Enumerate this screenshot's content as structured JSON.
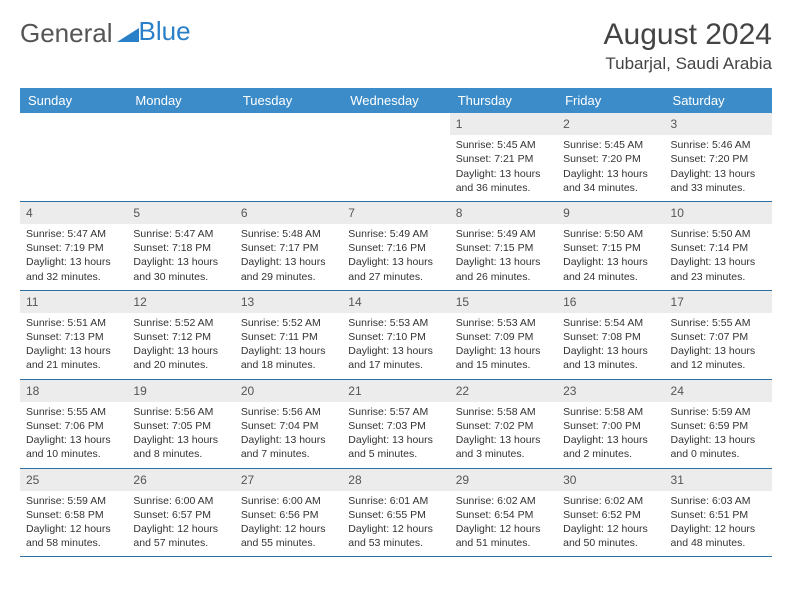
{
  "logo": {
    "part1": "General",
    "part2": "Blue"
  },
  "title": "August 2024",
  "location": "Tubarjal, Saudi Arabia",
  "colors": {
    "header_bg": "#3b8cc9",
    "header_text": "#ffffff",
    "daynum_bg": "#ececec",
    "week_border": "#2a6fa3",
    "logo_blue": "#2a7fc9",
    "text": "#333333"
  },
  "day_names": [
    "Sunday",
    "Monday",
    "Tuesday",
    "Wednesday",
    "Thursday",
    "Friday",
    "Saturday"
  ],
  "weeks": [
    [
      {
        "n": "",
        "sr": "",
        "ss": "",
        "dl": ""
      },
      {
        "n": "",
        "sr": "",
        "ss": "",
        "dl": ""
      },
      {
        "n": "",
        "sr": "",
        "ss": "",
        "dl": ""
      },
      {
        "n": "",
        "sr": "",
        "ss": "",
        "dl": ""
      },
      {
        "n": "1",
        "sr": "5:45 AM",
        "ss": "7:21 PM",
        "dl": "13 hours and 36 minutes."
      },
      {
        "n": "2",
        "sr": "5:45 AM",
        "ss": "7:20 PM",
        "dl": "13 hours and 34 minutes."
      },
      {
        "n": "3",
        "sr": "5:46 AM",
        "ss": "7:20 PM",
        "dl": "13 hours and 33 minutes."
      }
    ],
    [
      {
        "n": "4",
        "sr": "5:47 AM",
        "ss": "7:19 PM",
        "dl": "13 hours and 32 minutes."
      },
      {
        "n": "5",
        "sr": "5:47 AM",
        "ss": "7:18 PM",
        "dl": "13 hours and 30 minutes."
      },
      {
        "n": "6",
        "sr": "5:48 AM",
        "ss": "7:17 PM",
        "dl": "13 hours and 29 minutes."
      },
      {
        "n": "7",
        "sr": "5:49 AM",
        "ss": "7:16 PM",
        "dl": "13 hours and 27 minutes."
      },
      {
        "n": "8",
        "sr": "5:49 AM",
        "ss": "7:15 PM",
        "dl": "13 hours and 26 minutes."
      },
      {
        "n": "9",
        "sr": "5:50 AM",
        "ss": "7:15 PM",
        "dl": "13 hours and 24 minutes."
      },
      {
        "n": "10",
        "sr": "5:50 AM",
        "ss": "7:14 PM",
        "dl": "13 hours and 23 minutes."
      }
    ],
    [
      {
        "n": "11",
        "sr": "5:51 AM",
        "ss": "7:13 PM",
        "dl": "13 hours and 21 minutes."
      },
      {
        "n": "12",
        "sr": "5:52 AM",
        "ss": "7:12 PM",
        "dl": "13 hours and 20 minutes."
      },
      {
        "n": "13",
        "sr": "5:52 AM",
        "ss": "7:11 PM",
        "dl": "13 hours and 18 minutes."
      },
      {
        "n": "14",
        "sr": "5:53 AM",
        "ss": "7:10 PM",
        "dl": "13 hours and 17 minutes."
      },
      {
        "n": "15",
        "sr": "5:53 AM",
        "ss": "7:09 PM",
        "dl": "13 hours and 15 minutes."
      },
      {
        "n": "16",
        "sr": "5:54 AM",
        "ss": "7:08 PM",
        "dl": "13 hours and 13 minutes."
      },
      {
        "n": "17",
        "sr": "5:55 AM",
        "ss": "7:07 PM",
        "dl": "13 hours and 12 minutes."
      }
    ],
    [
      {
        "n": "18",
        "sr": "5:55 AM",
        "ss": "7:06 PM",
        "dl": "13 hours and 10 minutes."
      },
      {
        "n": "19",
        "sr": "5:56 AM",
        "ss": "7:05 PM",
        "dl": "13 hours and 8 minutes."
      },
      {
        "n": "20",
        "sr": "5:56 AM",
        "ss": "7:04 PM",
        "dl": "13 hours and 7 minutes."
      },
      {
        "n": "21",
        "sr": "5:57 AM",
        "ss": "7:03 PM",
        "dl": "13 hours and 5 minutes."
      },
      {
        "n": "22",
        "sr": "5:58 AM",
        "ss": "7:02 PM",
        "dl": "13 hours and 3 minutes."
      },
      {
        "n": "23",
        "sr": "5:58 AM",
        "ss": "7:00 PM",
        "dl": "13 hours and 2 minutes."
      },
      {
        "n": "24",
        "sr": "5:59 AM",
        "ss": "6:59 PM",
        "dl": "13 hours and 0 minutes."
      }
    ],
    [
      {
        "n": "25",
        "sr": "5:59 AM",
        "ss": "6:58 PM",
        "dl": "12 hours and 58 minutes."
      },
      {
        "n": "26",
        "sr": "6:00 AM",
        "ss": "6:57 PM",
        "dl": "12 hours and 57 minutes."
      },
      {
        "n": "27",
        "sr": "6:00 AM",
        "ss": "6:56 PM",
        "dl": "12 hours and 55 minutes."
      },
      {
        "n": "28",
        "sr": "6:01 AM",
        "ss": "6:55 PM",
        "dl": "12 hours and 53 minutes."
      },
      {
        "n": "29",
        "sr": "6:02 AM",
        "ss": "6:54 PM",
        "dl": "12 hours and 51 minutes."
      },
      {
        "n": "30",
        "sr": "6:02 AM",
        "ss": "6:52 PM",
        "dl": "12 hours and 50 minutes."
      },
      {
        "n": "31",
        "sr": "6:03 AM",
        "ss": "6:51 PM",
        "dl": "12 hours and 48 minutes."
      }
    ]
  ],
  "labels": {
    "sunrise": "Sunrise: ",
    "sunset": "Sunset: ",
    "daylight": "Daylight: "
  }
}
